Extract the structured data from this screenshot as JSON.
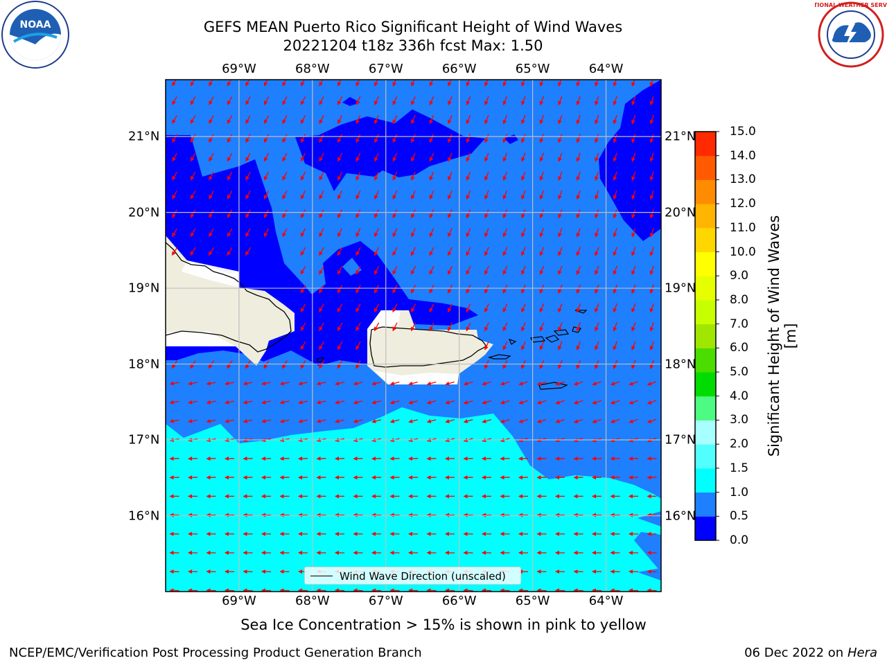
{
  "title": {
    "line1": "GEFS MEAN Puerto Rico Significant Height of Wind Waves",
    "line2": "20221204 t18z 336h fcst   Max: 1.50"
  },
  "axes": {
    "lon_labels": [
      "69°W",
      "68°W",
      "67°W",
      "66°W",
      "65°W",
      "64°W"
    ],
    "lat_labels": [
      "21°N",
      "20°N",
      "19°N",
      "18°N",
      "17°N",
      "16°N"
    ],
    "lon_values": [
      -69,
      -68,
      -67,
      -66,
      -65,
      -64
    ],
    "lat_values": [
      21,
      20,
      19,
      18,
      17,
      16
    ],
    "lon_range": [
      -70,
      -63.25
    ],
    "lat_range": [
      15,
      21.75
    ]
  },
  "colorbar": {
    "label": "Significant Height of Wind Waves [m]",
    "ticks": [
      "15.0",
      "14.0",
      "13.0",
      "12.0",
      "11.0",
      "10.0",
      "9.0",
      "8.0",
      "7.0",
      "6.0",
      "5.0",
      "4.0",
      "3.0",
      "2.0",
      "1.5",
      "1.0",
      "0.5",
      "0.0"
    ],
    "levels": [
      0.0,
      0.5,
      1.0,
      1.5,
      2.0,
      3.0,
      4.0,
      5.0,
      6.0,
      7.0,
      8.0,
      9.0,
      10.0,
      11.0,
      12.0,
      13.0,
      14.0,
      15.0
    ],
    "colors": [
      "#0000ff",
      "#1e7fff",
      "#00ffff",
      "#52ffff",
      "#a8ffff",
      "#4dfa82",
      "#00dc00",
      "#4bdc00",
      "#a0e600",
      "#c8ff00",
      "#e6ff00",
      "#ffff00",
      "#ffd700",
      "#ffb400",
      "#ff8c00",
      "#ff5a00",
      "#ff2a00"
    ]
  },
  "map": {
    "ocean_color": "#1e7fff",
    "low_wave_color": "#0000ff",
    "high_wave_color": "#00ffff",
    "land_color": "#efedde",
    "arrow_color": "#ff0000",
    "grid_color": "#bfbfbf"
  },
  "legend": {
    "label": "Wind Wave Direction (unscaled)"
  },
  "sea_ice_note": "Sea Ice Concentration > 15% is shown in pink to yellow",
  "footer": {
    "left": "NCEP/EMC/Verification Post Processing Product Generation Branch",
    "date": "06 Dec 2022 on",
    "machine": "Hera"
  },
  "logos": {
    "left": "NOAA",
    "right": "NATIONAL WEATHER SERVICE"
  }
}
